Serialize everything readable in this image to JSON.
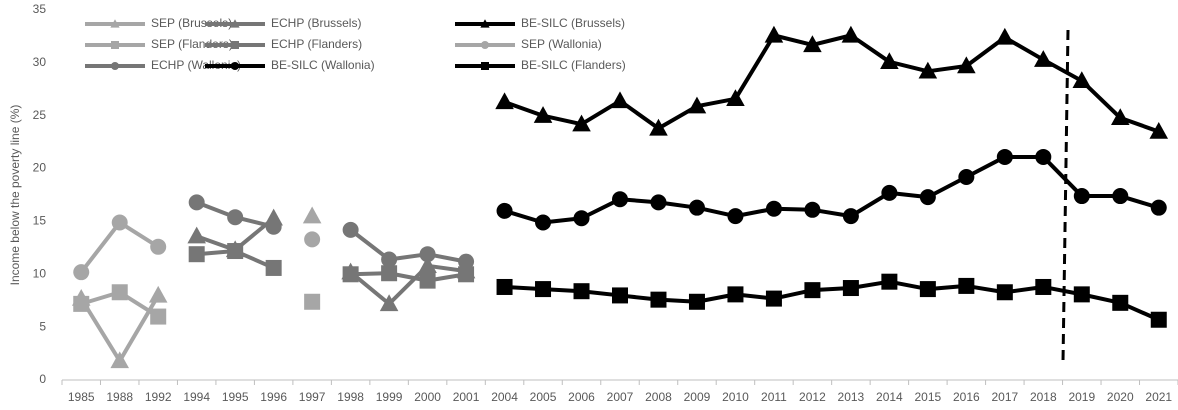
{
  "chart_data": {
    "type": "line",
    "y_label": "Income below the poverty line (%)",
    "categories": [
      "1985",
      "1988",
      "1992",
      "1994",
      "1995",
      "1996",
      "1997",
      "1998",
      "1999",
      "2000",
      "2001",
      "2004",
      "2005",
      "2006",
      "2007",
      "2008",
      "2009",
      "2010",
      "2011",
      "2012",
      "2013",
      "2014",
      "2015",
      "2016",
      "2017",
      "2018",
      "2019",
      "2020",
      "2021"
    ],
    "ylim": [
      0,
      35
    ],
    "yticks": [
      0,
      5,
      10,
      15,
      20,
      25,
      30,
      35
    ],
    "grid": false,
    "series": [
      {
        "name": "SEP (Brussels)",
        "color": "#a6a6a6",
        "marker": "triangle",
        "values": [
          7.7,
          1.8,
          8.0,
          null,
          null,
          null,
          15.5,
          null,
          null,
          null,
          null,
          null,
          null,
          null,
          null,
          null,
          null,
          null,
          null,
          null,
          null,
          null,
          null,
          null,
          null,
          null,
          null,
          null,
          null
        ]
      },
      {
        "name": "ECHP (Brussels)",
        "color": "#767676",
        "marker": "triangle",
        "values": [
          null,
          null,
          null,
          13.6,
          12.3,
          15.3,
          null,
          10.2,
          7.2,
          10.8,
          10.3,
          null,
          null,
          null,
          null,
          null,
          null,
          null,
          null,
          null,
          null,
          null,
          null,
          null,
          null,
          null,
          null,
          null,
          null
        ]
      },
      {
        "name": "BE-SILC (Brussels)",
        "color": "#000000",
        "marker": "triangle",
        "values": [
          null,
          null,
          null,
          null,
          null,
          null,
          null,
          null,
          null,
          null,
          null,
          26.3,
          25.0,
          24.2,
          26.4,
          23.8,
          25.9,
          26.6,
          32.6,
          31.7,
          32.6,
          30.1,
          29.2,
          29.7,
          32.4,
          30.3,
          28.3,
          24.8,
          23.5
        ]
      },
      {
        "name": "SEP (Flanders)",
        "color": "#a6a6a6",
        "marker": "square",
        "values": [
          7.2,
          8.3,
          6.0,
          null,
          null,
          null,
          7.4,
          null,
          null,
          null,
          null,
          null,
          null,
          null,
          null,
          null,
          null,
          null,
          null,
          null,
          null,
          null,
          null,
          null,
          null,
          null,
          null,
          null,
          null
        ]
      },
      {
        "name": "ECHP (Flanders)",
        "color": "#767676",
        "marker": "square",
        "values": [
          null,
          null,
          null,
          11.9,
          12.2,
          10.6,
          null,
          10.0,
          10.1,
          9.4,
          10.0,
          null,
          null,
          null,
          null,
          null,
          null,
          null,
          null,
          null,
          null,
          null,
          null,
          null,
          null,
          null,
          null,
          null,
          null
        ]
      },
      {
        "name": "SEP (Wallonia)",
        "color": "#a6a6a6",
        "marker": "circle",
        "values": [
          10.2,
          14.9,
          12.6,
          null,
          null,
          null,
          13.3,
          null,
          null,
          null,
          null,
          null,
          null,
          null,
          null,
          null,
          null,
          null,
          null,
          null,
          null,
          null,
          null,
          null,
          null,
          null,
          null,
          null,
          null
        ]
      },
      {
        "name": "ECHP (Wallonia)",
        "color": "#767676",
        "marker": "circle",
        "values": [
          null,
          null,
          null,
          16.8,
          15.4,
          14.5,
          null,
          14.2,
          11.4,
          11.9,
          11.2,
          null,
          null,
          null,
          null,
          null,
          null,
          null,
          null,
          null,
          null,
          null,
          null,
          null,
          null,
          null,
          null,
          null,
          null
        ]
      },
      {
        "name": "BE-SILC (Wallonia)",
        "color": "#000000",
        "marker": "circle",
        "values": [
          null,
          null,
          null,
          null,
          null,
          null,
          null,
          null,
          null,
          null,
          null,
          16.0,
          14.9,
          15.3,
          17.1,
          16.8,
          16.3,
          15.5,
          16.2,
          16.1,
          15.5,
          17.7,
          17.3,
          19.2,
          21.1,
          21.1,
          17.4,
          17.4,
          16.3
        ]
      },
      {
        "name": "BE-SILC (Flanders)",
        "color": "#000000",
        "marker": "square",
        "values": [
          null,
          null,
          null,
          null,
          null,
          null,
          null,
          null,
          null,
          null,
          null,
          8.8,
          8.6,
          8.4,
          8.0,
          7.6,
          7.4,
          8.1,
          7.7,
          8.5,
          8.7,
          9.3,
          8.6,
          8.9,
          8.3,
          8.8,
          8.1,
          7.3,
          5.7
        ]
      }
    ]
  }
}
